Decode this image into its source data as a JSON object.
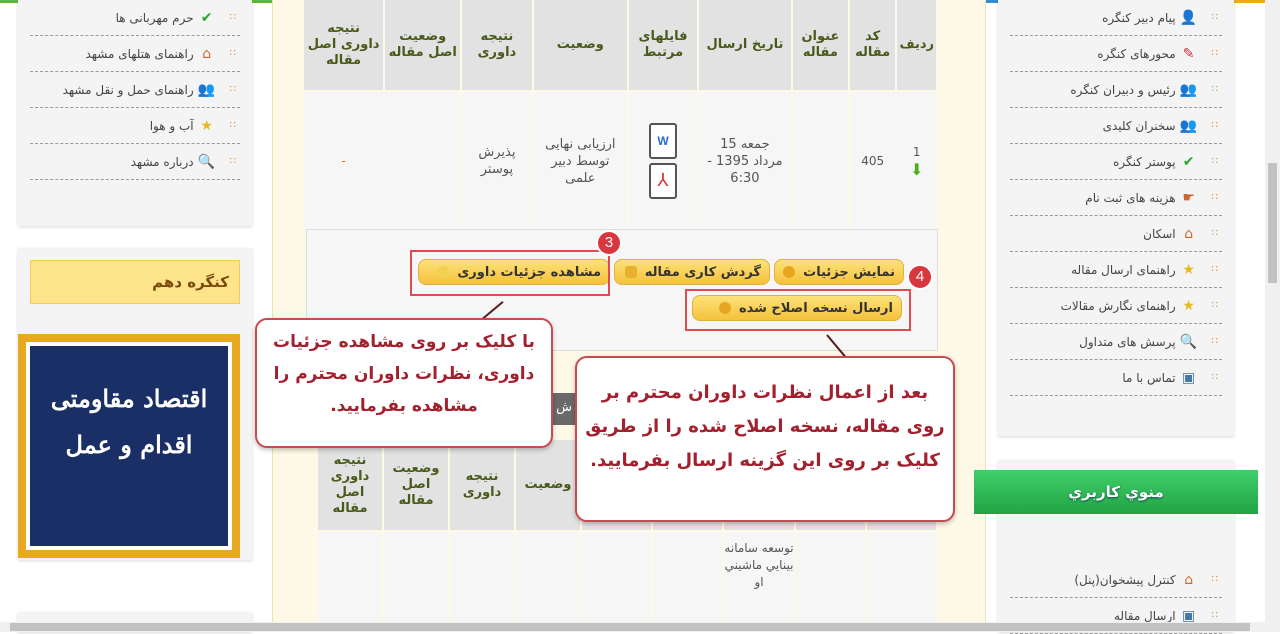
{
  "left_menu": [
    {
      "label": "حرم مهربانی ها",
      "icon": "check-icon"
    },
    {
      "label": "راهنمای هتلهای مشهد",
      "icon": "home-icon"
    },
    {
      "label": "راهنمای حمل و نقل مشهد",
      "icon": "people-icon"
    },
    {
      "label": "آب و هوا",
      "icon": "star-icon"
    },
    {
      "label": "درباره مشهد",
      "icon": "search-icon"
    }
  ],
  "left_box_title": "کنگره دهم",
  "logo_text": "اقدام و عمل اقتصاد مقاومتی",
  "right_menu": [
    {
      "label": "پیام دبیر کنگره",
      "icon": "person-icon"
    },
    {
      "label": "محورهای کنگره",
      "icon": "edit-icon"
    },
    {
      "label": "رئیس و دبیران کنگره",
      "icon": "people-icon"
    },
    {
      "label": "سخنران کلیدی",
      "icon": "people-icon"
    },
    {
      "label": "پوستر کنگره",
      "icon": "check-icon"
    },
    {
      "label": "هزینه های ثبت نام",
      "icon": "pointing-hand-icon"
    },
    {
      "label": "اسکان",
      "icon": "home-icon"
    },
    {
      "label": "راهنمای ارسال مقاله",
      "icon": "star-icon"
    },
    {
      "label": "راهنمای نگارش مقالات",
      "icon": "star-icon"
    },
    {
      "label": "پرسش های متداول",
      "icon": "search-icon"
    },
    {
      "label": "تماس با ما",
      "icon": "contact-icon"
    }
  ],
  "user_menu": {
    "title": "منوي کاربري",
    "items": [
      {
        "label": "کنترل پیشخوان(پنل)",
        "icon": "home-icon"
      },
      {
        "label": "ارسال مقاله",
        "icon": "contact-icon"
      }
    ]
  },
  "table": {
    "headers": [
      "ردیف",
      "کد مقاله",
      "عنوان مقاله",
      "تاریخ ارسال",
      "فایلهای مرتبط",
      "وضعیت",
      "نتیجه داوری",
      "وضعیت اصل مقاله",
      "نتیجه داوری اصل مقاله"
    ],
    "row": {
      "index": "1",
      "code": "405",
      "title": "",
      "date": "جمعه 15 مرداد 1395 - 6:30",
      "files": [
        "word-file-icon",
        "pdf-file-icon"
      ],
      "status": "ارزیابی نهایی توسط دبیر علمی",
      "review_result": "پذیرش پوستر",
      "original_status": "",
      "original_review": "-"
    }
  },
  "actions": {
    "details": "نمایش جزئیات",
    "workflow": "گردش کاری مقاله",
    "review_details": "مشاهده جزئیات داوری",
    "send_revised": "ارسال نسخه اصلاح شده"
  },
  "badges": {
    "three": "3",
    "four": "4"
  },
  "callouts": {
    "left": "با کلیک بر روی مشاهده جزئیات داوری، نظرات داوران محترم را مشاهده بفرمایید.",
    "right": "بعد از اعمال نظرات داوران محترم بر روی مقاله، نسخه اصلاح شده را از طریق کلیک بر روی این گزینه ارسال بفرمایید."
  },
  "table2": {
    "section_fragment": "ش",
    "headers": [
      "نتیجه داوری اصل مقاله",
      "وضعیت اصل مقاله",
      "نتیجه داوری",
      "وضعیت"
    ],
    "row_title": "توسعه سامانه بينايي ماشيني او"
  },
  "colors": {
    "accent_green": "#2fb84f",
    "callout_red": "#a3202e",
    "button_yellow": "#f5c23c"
  }
}
